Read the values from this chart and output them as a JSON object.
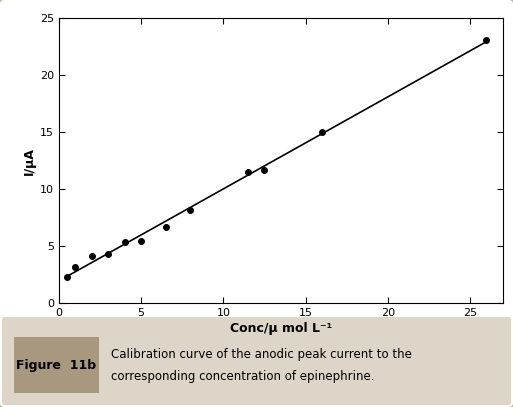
{
  "x_data": [
    0.5,
    1.0,
    2.0,
    3.0,
    4.0,
    5.0,
    6.5,
    8.0,
    11.5,
    12.5,
    16.0,
    26.0
  ],
  "y_data": [
    2.3,
    3.15,
    4.1,
    4.35,
    5.35,
    5.5,
    6.7,
    8.2,
    11.5,
    11.7,
    15.05,
    23.1
  ],
  "line_color": "#000000",
  "marker_color": "#000000",
  "marker_style": "o",
  "marker_size": 4,
  "line_width": 1.2,
  "xlim": [
    0,
    27
  ],
  "ylim": [
    0,
    25
  ],
  "xticks": [
    0,
    5,
    10,
    15,
    20,
    25
  ],
  "yticks": [
    0,
    5,
    10,
    15,
    20,
    25
  ],
  "xlabel": "Conc/μ mol L⁻¹",
  "ylabel": "I/μA",
  "xlabel_fontsize": 9,
  "ylabel_fontsize": 9,
  "tick_fontsize": 8,
  "plot_bg": "#ffffff",
  "outer_bg_color": "#f5f2ee",
  "border_color": "#c8b89a",
  "caption_bg": "#ddd5c8",
  "caption_label_bg": "#a89880",
  "caption_label_text": "Figure  11b",
  "caption_line1": "Calibration curve of the anodic peak current to the",
  "caption_line2": "corresponding concentration of epinephrine.",
  "caption_fontsize": 8.5
}
